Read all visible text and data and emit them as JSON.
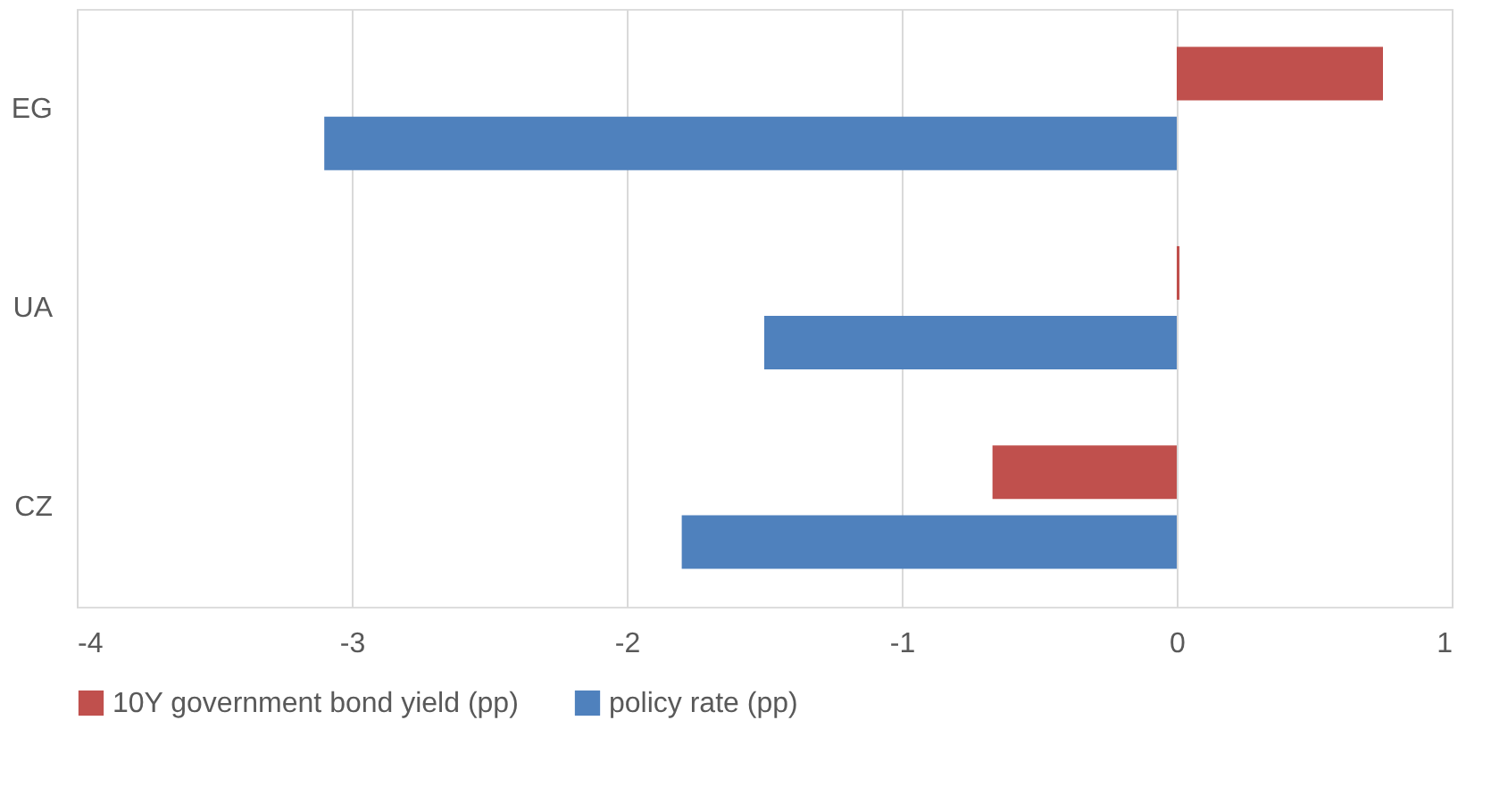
{
  "chart_data": {
    "type": "bar",
    "orientation": "horizontal",
    "categories": [
      "EG",
      "UA",
      "CZ"
    ],
    "series": [
      {
        "name": "10Y government bond yield (pp)",
        "color": "#c0504d",
        "values": [
          0.75,
          0.01,
          -0.67
        ]
      },
      {
        "name": "policy rate (pp)",
        "color": "#4f81bd",
        "values": [
          -3.1,
          -1.5,
          -1.8
        ]
      }
    ],
    "xlim": [
      -4,
      1
    ],
    "xticks": [
      -4,
      -3,
      -2,
      -1,
      0,
      1
    ],
    "grid": "x",
    "legend": "bottom"
  }
}
